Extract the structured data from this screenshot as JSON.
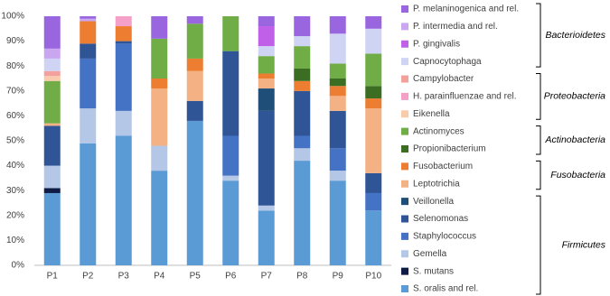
{
  "chart_data": {
    "type": "stacked_bar",
    "categories": [
      "P1",
      "P2",
      "P3",
      "P4",
      "P5",
      "P6",
      "P7",
      "P8",
      "P9",
      "P10"
    ],
    "ylim": [
      0,
      100
    ],
    "yticks": [
      {
        "value": 0,
        "label": "0%"
      },
      {
        "value": 10,
        "label": "10%"
      },
      {
        "value": 20,
        "label": "20%"
      },
      {
        "value": 30,
        "label": "30%"
      },
      {
        "value": 40,
        "label": "40%"
      },
      {
        "value": 50,
        "label": "50%"
      },
      {
        "value": 60,
        "label": "60%"
      },
      {
        "value": 70,
        "label": "70%"
      },
      {
        "value": 80,
        "label": "80%"
      },
      {
        "value": 90,
        "label": "90%"
      },
      {
        "value": 100,
        "label": "100%"
      }
    ],
    "series": [
      {
        "name": "S. oralis and rel.",
        "color": "#5b9bd5",
        "values": [
          29,
          49,
          52,
          38,
          58,
          34,
          22,
          42,
          34,
          22
        ]
      },
      {
        "name": "S. mutans",
        "color": "#0e1c45",
        "values": [
          2,
          0,
          0,
          0,
          0,
          0,
          0,
          0,
          0,
          0
        ]
      },
      {
        "name": "Gemella",
        "color": "#b4c7e7",
        "values": [
          9,
          14,
          10,
          10,
          0,
          2,
          2,
          5,
          4,
          0
        ]
      },
      {
        "name": "Staphylococcus",
        "color": "#4472c4",
        "values": [
          0,
          20,
          27,
          0,
          0,
          16,
          0,
          5,
          9,
          7
        ]
      },
      {
        "name": "Selenomonas",
        "color": "#2f5597",
        "values": [
          16,
          6,
          1,
          0,
          8,
          34,
          38,
          18,
          15,
          8
        ]
      },
      {
        "name": "Veillonella",
        "color": "#1f4e79",
        "values": [
          0,
          0,
          0,
          0,
          0,
          0,
          9,
          0,
          0,
          0
        ]
      },
      {
        "name": "Leptotrichia",
        "color": "#f4b183",
        "values": [
          1,
          0,
          0,
          23,
          12,
          0,
          4,
          0,
          6,
          26
        ]
      },
      {
        "name": "Fusobacterium",
        "color": "#ed7d31",
        "values": [
          0,
          9,
          6,
          4,
          5,
          0,
          2,
          4,
          4,
          4
        ]
      },
      {
        "name": "Propionibacterium",
        "color": "#3b6e22",
        "values": [
          0,
          0,
          0,
          0,
          0,
          0,
          0,
          5,
          3,
          5
        ]
      },
      {
        "name": "Actinomyces",
        "color": "#70ad47",
        "values": [
          17,
          0,
          0,
          16,
          14,
          14,
          7,
          9,
          6,
          13
        ]
      },
      {
        "name": "Eikenella",
        "color": "#f8cbad",
        "values": [
          2,
          0,
          0,
          0,
          0,
          0,
          0,
          0,
          0,
          0
        ]
      },
      {
        "name": "H. parainfluenzae and rel.",
        "color": "#f4a0c8",
        "values": [
          0,
          0,
          4,
          0,
          0,
          0,
          0,
          0,
          0,
          0
        ]
      },
      {
        "name": "Campylobacter",
        "color": "#f4a09c",
        "values": [
          2,
          0,
          0,
          0,
          0,
          0,
          0,
          0,
          0,
          0
        ]
      },
      {
        "name": "Capnocytophaga",
        "color": "#d0d4f4",
        "values": [
          5,
          0,
          0,
          0,
          0,
          0,
          4,
          4,
          12,
          10
        ]
      },
      {
        "name": "P. gingivalis",
        "color": "#c060e8",
        "values": [
          0,
          0,
          0,
          0,
          0,
          0,
          8,
          0,
          0,
          0
        ]
      },
      {
        "name": "P. intermedia and rel.",
        "color": "#caa6f0",
        "values": [
          4,
          1,
          0,
          0,
          0,
          0,
          0,
          0,
          0,
          0
        ]
      },
      {
        "name": "P. melaninogenica and rel.",
        "color": "#9966e0",
        "values": [
          13,
          1,
          0,
          9,
          3,
          0,
          4,
          8,
          7,
          5
        ]
      }
    ],
    "legend_groups": [
      "Bacterioidetes",
      "Proteobacteria",
      "Actinobacteria",
      "Fusobacteria",
      "Firmicutes"
    ]
  }
}
